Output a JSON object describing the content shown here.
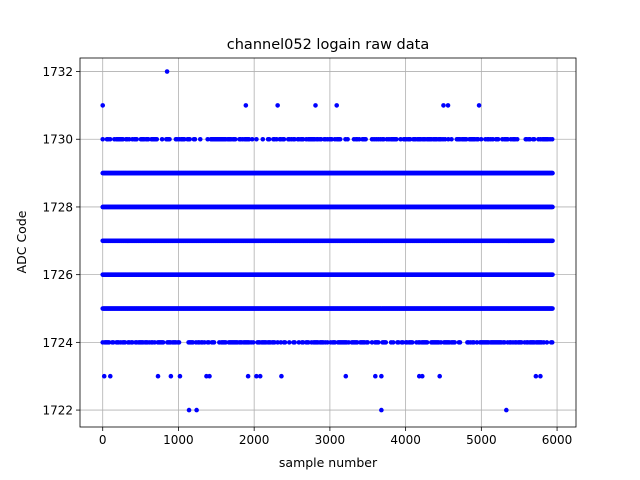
{
  "chart_data": {
    "type": "scatter",
    "title": "channel052 logain raw data",
    "xlabel": "sample number",
    "ylabel": "ADC Code",
    "xlim": [
      -300,
      6250
    ],
    "ylim": [
      1721.5,
      1732.4
    ],
    "xticks": [
      0,
      1000,
      2000,
      3000,
      4000,
      5000,
      6000
    ],
    "yticks": [
      1722,
      1724,
      1726,
      1728,
      1730,
      1732
    ],
    "grid": true,
    "marker_color": "#0000ff",
    "x_max_sample": 5940,
    "dense_levels": [
      1725,
      1726,
      1727,
      1728,
      1729
    ],
    "medium_levels": [
      1724,
      1730
    ],
    "points": [
      {
        "x": 0,
        "y": 1731
      },
      {
        "x": 850,
        "y": 1732
      },
      {
        "x": 1890,
        "y": 1731
      },
      {
        "x": 2310,
        "y": 1731
      },
      {
        "x": 2810,
        "y": 1731
      },
      {
        "x": 3090,
        "y": 1731
      },
      {
        "x": 4500,
        "y": 1731
      },
      {
        "x": 4560,
        "y": 1731
      },
      {
        "x": 4970,
        "y": 1731
      },
      {
        "x": 20,
        "y": 1723
      },
      {
        "x": 100,
        "y": 1723
      },
      {
        "x": 730,
        "y": 1723
      },
      {
        "x": 900,
        "y": 1723
      },
      {
        "x": 1020,
        "y": 1723
      },
      {
        "x": 1370,
        "y": 1723
      },
      {
        "x": 1410,
        "y": 1723
      },
      {
        "x": 1920,
        "y": 1723
      },
      {
        "x": 2030,
        "y": 1723
      },
      {
        "x": 2080,
        "y": 1723
      },
      {
        "x": 2360,
        "y": 1723
      },
      {
        "x": 3210,
        "y": 1723
      },
      {
        "x": 3600,
        "y": 1723
      },
      {
        "x": 3680,
        "y": 1723
      },
      {
        "x": 4180,
        "y": 1723
      },
      {
        "x": 4220,
        "y": 1723
      },
      {
        "x": 4450,
        "y": 1723
      },
      {
        "x": 5720,
        "y": 1723
      },
      {
        "x": 5780,
        "y": 1723
      },
      {
        "x": 1140,
        "y": 1722
      },
      {
        "x": 1240,
        "y": 1722
      },
      {
        "x": 3680,
        "y": 1722
      },
      {
        "x": 5330,
        "y": 1722
      }
    ]
  }
}
